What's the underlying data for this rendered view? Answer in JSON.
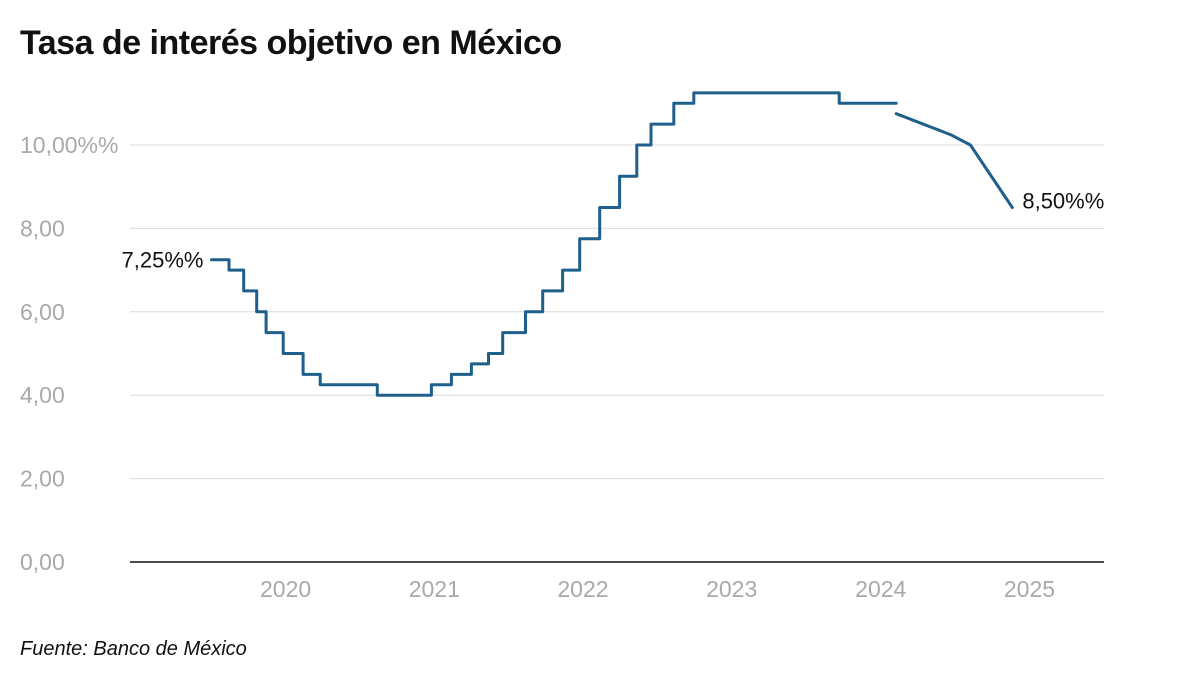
{
  "chart_data": {
    "type": "line",
    "title": "Tasa de interés objetivo en México",
    "source": "Fuente: Banco de México",
    "xlabel": "",
    "ylabel": "",
    "x_domain": [
      "2019-06-15",
      "2025-12-31"
    ],
    "ylim": [
      0,
      11.5
    ],
    "y_ticks": [
      {
        "value": 0,
        "label": "0,00"
      },
      {
        "value": 2,
        "label": "2,00"
      },
      {
        "value": 4,
        "label": "4,00"
      },
      {
        "value": 6,
        "label": "6,00"
      },
      {
        "value": 8,
        "label": "8,00"
      },
      {
        "value": 10,
        "label": "10,00%%"
      }
    ],
    "x_ticks": [
      {
        "date": "2020-07-01",
        "label": "2020"
      },
      {
        "date": "2021-07-01",
        "label": "2021"
      },
      {
        "date": "2022-07-01",
        "label": "2022"
      },
      {
        "date": "2023-07-01",
        "label": "2023"
      },
      {
        "date": "2024-07-01",
        "label": "2024"
      },
      {
        "date": "2025-07-01",
        "label": "2025"
      }
    ],
    "grid": true,
    "line_color": "#1f5f8b",
    "start_label": "7,25%%",
    "end_label": "8,50%%",
    "series": [
      {
        "step": true,
        "points": [
          {
            "date": "2020-01-01",
            "value": 7.25
          },
          {
            "date": "2020-02-13",
            "value": 7.0
          },
          {
            "date": "2020-03-20",
            "value": 6.5
          },
          {
            "date": "2020-04-21",
            "value": 6.0
          },
          {
            "date": "2020-05-14",
            "value": 5.5
          },
          {
            "date": "2020-06-25",
            "value": 5.0
          },
          {
            "date": "2020-08-13",
            "value": 4.5
          },
          {
            "date": "2020-09-24",
            "value": 4.25
          },
          {
            "date": "2021-02-11",
            "value": 4.0
          },
          {
            "date": "2021-06-24",
            "value": 4.25
          },
          {
            "date": "2021-08-12",
            "value": 4.5
          },
          {
            "date": "2021-09-30",
            "value": 4.75
          },
          {
            "date": "2021-11-11",
            "value": 5.0
          },
          {
            "date": "2021-12-16",
            "value": 5.5
          },
          {
            "date": "2022-02-10",
            "value": 6.0
          },
          {
            "date": "2022-03-24",
            "value": 6.5
          },
          {
            "date": "2022-05-12",
            "value": 7.0
          },
          {
            "date": "2022-06-23",
            "value": 7.75
          },
          {
            "date": "2022-08-11",
            "value": 8.5
          },
          {
            "date": "2022-09-29",
            "value": 9.25
          },
          {
            "date": "2022-11-10",
            "value": 10.0
          },
          {
            "date": "2022-12-15",
            "value": 10.5
          },
          {
            "date": "2023-02-09",
            "value": 11.0
          },
          {
            "date": "2023-03-30",
            "value": 11.25
          },
          {
            "date": "2024-03-21",
            "value": 11.0
          },
          {
            "date": "2024-08-08",
            "value": 11.0
          }
        ]
      },
      {
        "step": false,
        "points": [
          {
            "date": "2024-08-08",
            "value": 10.75
          },
          {
            "date": "2024-12-19",
            "value": 10.25
          },
          {
            "date": "2025-02-06",
            "value": 10.0
          },
          {
            "date": "2025-05-20",
            "value": 8.5
          }
        ]
      }
    ]
  }
}
